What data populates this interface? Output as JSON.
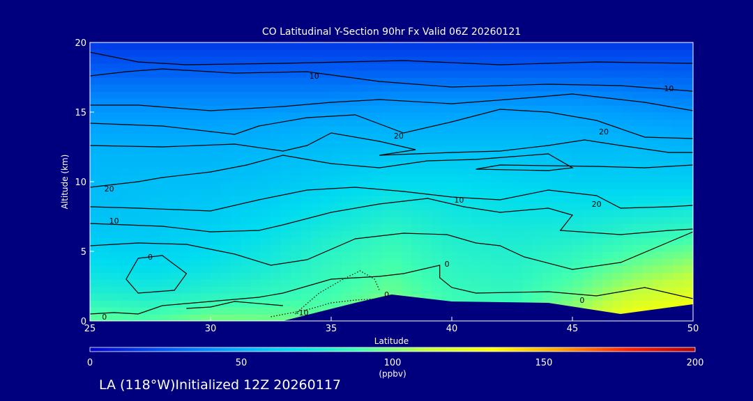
{
  "chart_data": {
    "type": "heatmap",
    "title": "CO Latitudinal Y-Section 90hr  Fx Valid 06Z 20260121",
    "xlabel": "Latitude",
    "ylabel": "Altitude (km)",
    "xlim": [
      25,
      50
    ],
    "ylim": [
      0,
      20
    ],
    "x_ticks": [
      "25",
      "30",
      "35",
      "40",
      "45",
      "50"
    ],
    "y_ticks": [
      "0",
      "5",
      "10",
      "15",
      "20"
    ],
    "colorbar": {
      "range": [
        0,
        200
      ],
      "ticks": [
        "0",
        "50",
        "100",
        "150",
        "200"
      ],
      "units": "(ppbv)",
      "colors": [
        "#0000c8",
        "#0050f0",
        "#00a0ff",
        "#00dcf0",
        "#40ffb0",
        "#c0ff40",
        "#ffff00",
        "#ffa000",
        "#ff2000",
        "#b00000"
      ]
    },
    "grid": false,
    "terrain": [
      [
        25,
        0.0
      ],
      [
        33,
        0.0
      ],
      [
        36,
        1.3
      ],
      [
        37.5,
        1.9
      ],
      [
        38.5,
        1.7
      ],
      [
        40,
        1.4
      ],
      [
        44,
        1.3
      ],
      [
        47,
        0.5
      ],
      [
        50,
        1.2
      ]
    ],
    "field": {
      "lats": [
        25,
        27.5,
        30,
        32.5,
        35,
        37.5,
        40,
        42.5,
        45,
        47.5,
        50
      ],
      "alts": [
        0,
        2,
        4,
        6,
        8,
        10,
        12,
        14,
        16,
        18,
        20
      ],
      "values_ppbv": [
        [
          95,
          92,
          100,
          98,
          96,
          112,
          92,
          92,
          110,
          135,
          140
        ],
        [
          78,
          76,
          80,
          84,
          88,
          96,
          86,
          84,
          95,
          112,
          122
        ],
        [
          68,
          66,
          70,
          76,
          84,
          90,
          82,
          80,
          86,
          96,
          105
        ],
        [
          60,
          60,
          64,
          70,
          78,
          84,
          78,
          76,
          78,
          84,
          88
        ],
        [
          56,
          58,
          60,
          64,
          70,
          76,
          72,
          70,
          70,
          72,
          74
        ],
        [
          54,
          56,
          56,
          58,
          62,
          66,
          66,
          64,
          62,
          62,
          62
        ],
        [
          52,
          52,
          52,
          54,
          56,
          58,
          58,
          58,
          56,
          56,
          54
        ],
        [
          46,
          46,
          46,
          48,
          50,
          50,
          50,
          50,
          50,
          48,
          46
        ],
        [
          38,
          38,
          38,
          38,
          38,
          40,
          40,
          40,
          40,
          38,
          36
        ],
        [
          26,
          26,
          26,
          26,
          26,
          26,
          26,
          26,
          26,
          26,
          26
        ],
        [
          16,
          16,
          16,
          16,
          16,
          16,
          16,
          16,
          16,
          16,
          16
        ]
      ]
    },
    "contour_labels": [
      {
        "text": "10",
        "lat": 34.3,
        "alt": 17.6
      },
      {
        "text": "10",
        "lat": 49.0,
        "alt": 16.7
      },
      {
        "text": "20",
        "lat": 37.8,
        "alt": 13.3
      },
      {
        "text": "20",
        "lat": 46.3,
        "alt": 13.6
      },
      {
        "text": "20",
        "lat": 25.8,
        "alt": 9.5
      },
      {
        "text": "20",
        "lat": 46.0,
        "alt": 8.4
      },
      {
        "text": "10",
        "lat": 26.0,
        "alt": 7.2
      },
      {
        "text": "10",
        "lat": 40.3,
        "alt": 8.7
      },
      {
        "text": "0",
        "lat": 27.5,
        "alt": 4.6
      },
      {
        "text": "0",
        "lat": 39.8,
        "alt": 4.1
      },
      {
        "text": "0",
        "lat": 45.4,
        "alt": 1.5
      },
      {
        "text": "0",
        "lat": 25.6,
        "alt": 0.3
      },
      {
        "text": "0",
        "lat": 37.3,
        "alt": 1.9
      },
      {
        "text": "-10",
        "lat": 33.8,
        "alt": 0.6
      }
    ],
    "contours": [
      {
        "style": "solid",
        "points": [
          [
            25,
            19.3
          ],
          [
            27,
            18.6
          ],
          [
            29,
            18.4
          ],
          [
            33,
            18.5
          ],
          [
            38,
            18.7
          ],
          [
            42,
            18.4
          ],
          [
            46,
            18.6
          ],
          [
            50,
            18.5
          ]
        ]
      },
      {
        "style": "solid",
        "points": [
          [
            25,
            17.6
          ],
          [
            26.5,
            17.9
          ],
          [
            28,
            18.1
          ],
          [
            31,
            17.8
          ],
          [
            34,
            17.9
          ],
          [
            37,
            17.2
          ],
          [
            40,
            16.8
          ],
          [
            44,
            17.0
          ],
          [
            47,
            16.9
          ],
          [
            50,
            16.5
          ]
        ]
      },
      {
        "style": "solid",
        "points": [
          [
            25,
            15.5
          ],
          [
            27,
            15.5
          ],
          [
            30,
            15.1
          ],
          [
            33,
            15.4
          ],
          [
            35,
            15.7
          ],
          [
            37,
            15.9
          ],
          [
            40,
            15.6
          ],
          [
            43,
            16.0
          ],
          [
            45,
            16.3
          ],
          [
            48,
            15.7
          ],
          [
            50,
            15.1
          ]
        ]
      },
      {
        "style": "solid",
        "points": [
          [
            25,
            14.2
          ],
          [
            28,
            14.0
          ],
          [
            31,
            13.4
          ],
          [
            32,
            14.0
          ],
          [
            34,
            14.6
          ],
          [
            36,
            14.8
          ],
          [
            38,
            13.5
          ],
          [
            40,
            14.3
          ],
          [
            42,
            15.2
          ],
          [
            44,
            15.0
          ],
          [
            46,
            14.4
          ],
          [
            48,
            13.2
          ],
          [
            50,
            13.1
          ]
        ]
      },
      {
        "style": "solid",
        "points": [
          [
            25,
            12.6
          ],
          [
            28,
            12.5
          ],
          [
            31,
            12.7
          ],
          [
            33,
            12.2
          ],
          [
            34,
            12.6
          ],
          [
            35,
            13.5
          ],
          [
            37,
            12.9
          ],
          [
            38.5,
            12.3
          ],
          [
            37,
            11.9
          ],
          [
            40,
            12.1
          ],
          [
            42,
            12.2
          ],
          [
            44,
            12.6
          ],
          [
            45.5,
            13.0
          ],
          [
            47,
            12.6
          ],
          [
            49,
            12.1
          ],
          [
            50,
            12.1
          ]
        ]
      },
      {
        "style": "solid",
        "points": [
          [
            25,
            9.6
          ],
          [
            27,
            10.0
          ],
          [
            28,
            10.3
          ],
          [
            30,
            10.7
          ],
          [
            31.5,
            11.2
          ],
          [
            33,
            11.9
          ],
          [
            35,
            11.3
          ],
          [
            37,
            11.0
          ],
          [
            39,
            11.5
          ],
          [
            41,
            11.6
          ],
          [
            42.5,
            11.8
          ],
          [
            44,
            12.0
          ],
          [
            45,
            11.0
          ],
          [
            44,
            10.8
          ],
          [
            41,
            10.9
          ],
          [
            42,
            11.2
          ],
          [
            46,
            11.1
          ],
          [
            48,
            11.0
          ],
          [
            50,
            11.2
          ]
        ]
      },
      {
        "style": "solid",
        "points": [
          [
            25,
            8.2
          ],
          [
            27,
            8.1
          ],
          [
            30,
            7.9
          ],
          [
            32,
            8.7
          ],
          [
            34,
            9.4
          ],
          [
            36,
            9.6
          ],
          [
            38,
            9.3
          ],
          [
            40,
            8.9
          ],
          [
            42,
            8.7
          ],
          [
            44,
            9.4
          ],
          [
            46,
            9.0
          ],
          [
            47,
            8.1
          ],
          [
            49,
            8.2
          ],
          [
            50,
            8.3
          ]
        ]
      },
      {
        "style": "solid",
        "points": [
          [
            25,
            7.0
          ],
          [
            28,
            6.8
          ],
          [
            30,
            6.4
          ],
          [
            32,
            6.5
          ],
          [
            33,
            6.9
          ],
          [
            35,
            7.8
          ],
          [
            37,
            8.4
          ],
          [
            39,
            8.8
          ],
          [
            40.5,
            8.2
          ],
          [
            42,
            7.8
          ],
          [
            44,
            8.1
          ],
          [
            45,
            7.6
          ],
          [
            44.5,
            6.5
          ],
          [
            47,
            6.2
          ],
          [
            49,
            6.5
          ],
          [
            50,
            6.6
          ]
        ]
      },
      {
        "style": "solid",
        "points": [
          [
            25,
            5.4
          ],
          [
            27,
            5.6
          ],
          [
            29,
            5.5
          ],
          [
            31,
            4.8
          ],
          [
            32.5,
            4.0
          ],
          [
            34,
            4.4
          ],
          [
            36,
            5.9
          ],
          [
            38,
            6.3
          ],
          [
            39.8,
            6.2
          ],
          [
            41,
            5.6
          ],
          [
            42,
            5.4
          ],
          [
            43,
            4.6
          ],
          [
            45,
            3.7
          ],
          [
            47,
            4.2
          ],
          [
            50,
            6.4
          ]
        ]
      },
      {
        "style": "solid",
        "points": [
          [
            27,
            4.5
          ],
          [
            28,
            4.7
          ],
          [
            29,
            3.4
          ],
          [
            28.5,
            2.2
          ],
          [
            27,
            2.0
          ],
          [
            26.5,
            3.0
          ],
          [
            27,
            4.5
          ]
        ]
      },
      {
        "style": "solid",
        "points": [
          [
            25,
            0.5
          ],
          [
            26,
            0.6
          ],
          [
            27,
            0.5
          ],
          [
            28,
            1.1
          ],
          [
            30,
            1.4
          ],
          [
            32,
            1.7
          ],
          [
            33,
            2.0
          ],
          [
            35,
            3.0
          ],
          [
            37,
            3.2
          ],
          [
            38,
            3.4
          ],
          [
            39.5,
            4.0
          ],
          [
            39.5,
            3.1
          ],
          [
            40,
            2.4
          ],
          [
            41,
            2.0
          ],
          [
            44,
            2.1
          ],
          [
            46,
            1.8
          ],
          [
            48,
            2.4
          ],
          [
            50,
            1.6
          ]
        ]
      },
      {
        "style": "solid",
        "points": [
          [
            29,
            0.9
          ],
          [
            30,
            1.0
          ],
          [
            31,
            1.4
          ],
          [
            33,
            1.1
          ]
        ]
      },
      {
        "style": "dotted",
        "points": [
          [
            32.5,
            0.3
          ],
          [
            34,
            0.8
          ],
          [
            35,
            1.3
          ],
          [
            36,
            1.5
          ],
          [
            37,
            1.6
          ]
        ]
      },
      {
        "style": "dotted",
        "points": [
          [
            33.5,
            0.5
          ],
          [
            34.5,
            2.0
          ],
          [
            35.5,
            3.0
          ],
          [
            36.2,
            3.6
          ],
          [
            36.8,
            3.0
          ],
          [
            37,
            2.2
          ]
        ]
      }
    ]
  },
  "caption": "LA (118°W)Initialized 12Z 20260117"
}
